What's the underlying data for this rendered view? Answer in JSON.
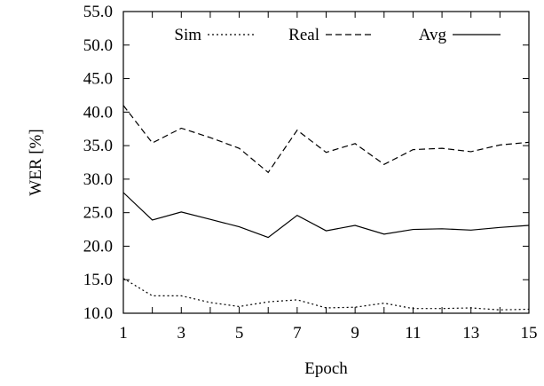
{
  "chart_data": {
    "type": "line",
    "xlabel": "Epoch",
    "ylabel": "WER [%]",
    "xlim": [
      1,
      15
    ],
    "ylim": [
      10.0,
      55.0
    ],
    "x_ticks": [
      "1",
      "3",
      "5",
      "7",
      "9",
      "11",
      "13",
      "15"
    ],
    "y_ticks": [
      "10.0",
      "15.0",
      "20.0",
      "25.0",
      "30.0",
      "35.0",
      "40.0",
      "45.0",
      "50.0",
      "55.0"
    ],
    "grid": false,
    "legend_position": "top",
    "x": [
      1,
      2,
      3,
      4,
      5,
      6,
      7,
      8,
      9,
      10,
      11,
      12,
      13,
      14,
      15
    ],
    "series": [
      {
        "name": "Sim",
        "line_style": "dotted",
        "values": [
          15.2,
          12.6,
          12.6,
          11.6,
          11.0,
          11.7,
          12.0,
          10.8,
          10.9,
          11.5,
          10.7,
          10.7,
          10.8,
          10.5,
          10.6
        ]
      },
      {
        "name": "Real",
        "line_style": "dashed",
        "values": [
          41.0,
          35.4,
          37.6,
          36.2,
          34.6,
          31.0,
          37.3,
          34.0,
          35.3,
          32.2,
          34.4,
          34.6,
          34.1,
          35.1,
          35.5
        ]
      },
      {
        "name": "Avg",
        "line_style": "solid",
        "values": [
          28.0,
          23.9,
          25.1,
          24.0,
          22.9,
          21.3,
          24.6,
          22.3,
          23.1,
          21.8,
          22.5,
          22.6,
          22.4,
          22.8,
          23.1
        ]
      }
    ],
    "colors": {
      "line": "#000000",
      "background": "#ffffff"
    }
  }
}
